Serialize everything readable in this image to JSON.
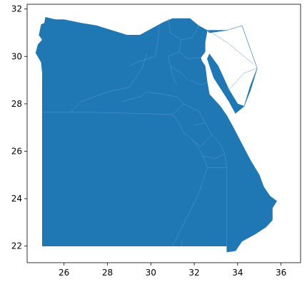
{
  "chart_data": {
    "type": "choropleth-map",
    "title": "",
    "xlabel": "",
    "ylabel": "",
    "xlim": [
      24.3,
      36.9
    ],
    "ylim": [
      21.3,
      32.2
    ],
    "x_ticks": [
      {
        "value": 26,
        "label": "26"
      },
      {
        "value": 28,
        "label": "28"
      },
      {
        "value": 30,
        "label": "30"
      },
      {
        "value": 32,
        "label": "32"
      },
      {
        "value": 34,
        "label": "34"
      },
      {
        "value": 36,
        "label": "36"
      }
    ],
    "y_ticks": [
      {
        "value": 22,
        "label": "22"
      },
      {
        "value": 24,
        "label": "24"
      },
      {
        "value": 26,
        "label": "26"
      },
      {
        "value": 28,
        "label": "28"
      },
      {
        "value": 30,
        "label": "30"
      },
      {
        "value": 32,
        "label": "32"
      }
    ],
    "grid": false,
    "fill_color": "#1f77b4",
    "edge_color": "#5a9bd0",
    "outline": [
      [
        25.0,
        22.0
      ],
      [
        31.4,
        22.0
      ],
      [
        33.5,
        22.0
      ],
      [
        33.5,
        21.75
      ],
      [
        33.9,
        21.8
      ],
      [
        34.2,
        22.2
      ],
      [
        34.8,
        22.5
      ],
      [
        35.3,
        22.8
      ],
      [
        35.6,
        23.1
      ],
      [
        35.6,
        23.6
      ],
      [
        35.8,
        23.9
      ],
      [
        35.5,
        24.1
      ],
      [
        35.2,
        24.5
      ],
      [
        35.0,
        25.0
      ],
      [
        34.6,
        25.6
      ],
      [
        34.2,
        26.3
      ],
      [
        33.8,
        27.0
      ],
      [
        33.5,
        27.5
      ],
      [
        33.2,
        27.9
      ],
      [
        32.7,
        28.4
      ],
      [
        32.6,
        28.9
      ],
      [
        32.5,
        29.6
      ],
      [
        32.35,
        29.8
      ],
      [
        32.3,
        29.95
      ],
      [
        32.5,
        30.2
      ],
      [
        32.5,
        30.6
      ],
      [
        32.6,
        31.1
      ],
      [
        32.7,
        31.0
      ],
      [
        33.5,
        31.1
      ],
      [
        34.2,
        31.3
      ],
      [
        34.9,
        29.5
      ],
      [
        34.6,
        28.8
      ],
      [
        34.4,
        28.2
      ],
      [
        34.3,
        27.9
      ],
      [
        34.0,
        28.0
      ],
      [
        33.6,
        28.6
      ],
      [
        33.1,
        29.6
      ],
      [
        32.7,
        30.1
      ],
      [
        32.6,
        29.9
      ],
      [
        32.9,
        29.1
      ],
      [
        33.6,
        28.1
      ],
      [
        33.9,
        27.6
      ],
      [
        34.3,
        27.9
      ],
      [
        34.6,
        28.6
      ],
      [
        34.9,
        29.5
      ],
      [
        34.2,
        31.3
      ],
      [
        33.5,
        31.1
      ],
      [
        32.6,
        31.1
      ],
      [
        32.2,
        31.3
      ],
      [
        31.8,
        31.6
      ],
      [
        31.4,
        31.6
      ],
      [
        31.0,
        31.6
      ],
      [
        30.6,
        31.45
      ],
      [
        30.3,
        31.3
      ],
      [
        29.9,
        31.1
      ],
      [
        29.5,
        30.9
      ],
      [
        28.9,
        30.9
      ],
      [
        28.2,
        31.1
      ],
      [
        27.5,
        31.3
      ],
      [
        26.8,
        31.4
      ],
      [
        26.0,
        31.55
      ],
      [
        25.6,
        31.55
      ],
      [
        25.15,
        31.65
      ],
      [
        25.1,
        31.4
      ],
      [
        24.95,
        31.35
      ],
      [
        24.85,
        30.9
      ],
      [
        25.0,
        30.7
      ],
      [
        24.8,
        30.5
      ],
      [
        24.7,
        30.15
      ],
      [
        24.95,
        29.75
      ],
      [
        25.0,
        29.3
      ],
      [
        25.0,
        22.0
      ]
    ],
    "interior_borders": [
      [
        [
          25.0,
          27.65
        ],
        [
          27.0,
          27.65
        ],
        [
          29.2,
          27.6
        ],
        [
          31.0,
          27.55
        ]
      ],
      [
        [
          31.0,
          22.0
        ],
        [
          32.2,
          24.2
        ],
        [
          32.6,
          25.3
        ]
      ],
      [
        [
          33.5,
          22.0
        ],
        [
          33.5,
          25.3
        ]
      ],
      [
        [
          32.6,
          25.3
        ],
        [
          33.5,
          25.3
        ]
      ],
      [
        [
          31.4,
          22.0
        ],
        [
          31.45,
          22.25
        ]
      ],
      [
        [
          26.3,
          27.65
        ],
        [
          26.8,
          28.1
        ],
        [
          28.0,
          28.5
        ],
        [
          29.0,
          28.7
        ],
        [
          29.6,
          29.5
        ],
        [
          29.8,
          30.1
        ]
      ],
      [
        [
          28.7,
          28.1
        ],
        [
          29.5,
          28.3
        ],
        [
          29.8,
          28.5
        ]
      ],
      [
        [
          29.0,
          29.6
        ],
        [
          29.5,
          29.8
        ],
        [
          30.2,
          30.0
        ]
      ],
      [
        [
          30.2,
          30.0
        ],
        [
          30.3,
          30.5
        ],
        [
          30.4,
          31.3
        ]
      ],
      [
        [
          30.8,
          31.6
        ],
        [
          30.9,
          31.0
        ],
        [
          31.4,
          30.7
        ],
        [
          31.9,
          30.8
        ],
        [
          32.2,
          31.3
        ]
      ],
      [
        [
          31.4,
          30.7
        ],
        [
          31.3,
          30.2
        ],
        [
          31.7,
          29.9
        ],
        [
          32.3,
          29.95
        ]
      ],
      [
        [
          31.3,
          30.2
        ],
        [
          30.8,
          30.0
        ],
        [
          30.9,
          29.6
        ],
        [
          31.4,
          29.3
        ],
        [
          31.7,
          29.0
        ]
      ],
      [
        [
          30.9,
          29.6
        ],
        [
          31.0,
          29.2
        ],
        [
          31.2,
          28.8
        ]
      ],
      [
        [
          29.8,
          28.5
        ],
        [
          30.6,
          28.4
        ],
        [
          31.2,
          28.3
        ],
        [
          31.5,
          28.0
        ],
        [
          31.0,
          27.55
        ]
      ],
      [
        [
          31.0,
          27.55
        ],
        [
          31.3,
          27.2
        ],
        [
          31.5,
          26.8
        ],
        [
          31.9,
          26.5
        ],
        [
          32.3,
          26.0
        ],
        [
          32.5,
          25.6
        ],
        [
          32.6,
          25.3
        ]
      ],
      [
        [
          31.5,
          28.0
        ],
        [
          32.2,
          27.7
        ],
        [
          32.5,
          27.2
        ],
        [
          32.8,
          26.7
        ],
        [
          33.2,
          26.3
        ],
        [
          33.4,
          25.9
        ],
        [
          33.5,
          25.3
        ]
      ],
      [
        [
          32.0,
          27.1
        ],
        [
          32.5,
          27.2
        ]
      ],
      [
        [
          31.9,
          26.5
        ],
        [
          32.3,
          26.2
        ],
        [
          32.8,
          26.7
        ]
      ],
      [
        [
          32.35,
          25.8
        ],
        [
          33.0,
          25.7
        ],
        [
          33.4,
          25.9
        ]
      ],
      [
        [
          31.8,
          29.0
        ],
        [
          32.3,
          28.8
        ],
        [
          32.6,
          28.9
        ]
      ],
      [
        [
          33.6,
          28.6
        ],
        [
          34.3,
          29.3
        ],
        [
          34.9,
          29.5
        ]
      ],
      [
        [
          32.6,
          31.1
        ],
        [
          33.5,
          30.6
        ],
        [
          34.7,
          29.7
        ]
      ]
    ]
  }
}
